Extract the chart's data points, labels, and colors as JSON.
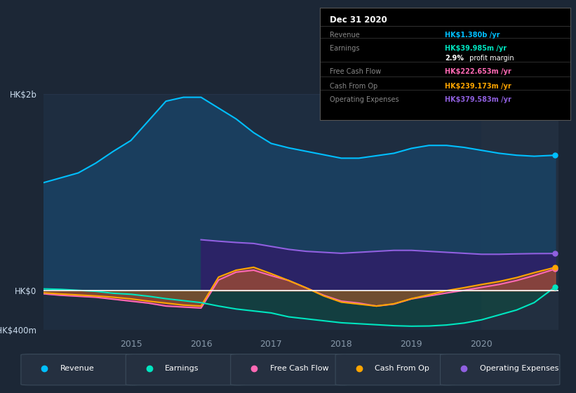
{
  "bg_color": "#1c2736",
  "plot_bg_color": "#1e2d40",
  "grid_color": "#2a3a50",
  "zero_line_color": "#ffffff",
  "series": {
    "revenue": {
      "color": "#00bfff",
      "label": "Revenue"
    },
    "earnings": {
      "color": "#00e5c0",
      "label": "Earnings"
    },
    "free_cash_flow": {
      "color": "#ff69b4",
      "label": "Free Cash Flow"
    },
    "cash_from_op": {
      "color": "#ffa500",
      "label": "Cash From Op"
    },
    "operating_expenses": {
      "color": "#9060e0",
      "label": "Operating Expenses"
    }
  },
  "x": [
    2013.75,
    2014.0,
    2014.25,
    2014.5,
    2014.75,
    2015.0,
    2015.25,
    2015.5,
    2015.75,
    2016.0,
    2016.25,
    2016.5,
    2016.75,
    2017.0,
    2017.25,
    2017.5,
    2017.75,
    2018.0,
    2018.25,
    2018.5,
    2018.75,
    2019.0,
    2019.25,
    2019.5,
    2019.75,
    2020.0,
    2020.25,
    2020.5,
    2020.75,
    2021.05
  ],
  "revenue": [
    1100,
    1150,
    1200,
    1300,
    1420,
    1530,
    1730,
    1930,
    1970,
    1970,
    1860,
    1750,
    1610,
    1500,
    1455,
    1420,
    1385,
    1350,
    1350,
    1375,
    1400,
    1450,
    1480,
    1480,
    1460,
    1430,
    1400,
    1380,
    1370,
    1380
  ],
  "earnings": [
    20,
    15,
    5,
    -5,
    -25,
    -35,
    -55,
    -80,
    -100,
    -120,
    -155,
    -185,
    -205,
    -225,
    -265,
    -285,
    -305,
    -325,
    -335,
    -345,
    -355,
    -360,
    -358,
    -348,
    -328,
    -295,
    -245,
    -195,
    -120,
    40
  ],
  "free_cash_flow": [
    -30,
    -45,
    -55,
    -65,
    -85,
    -105,
    -125,
    -155,
    -165,
    -175,
    110,
    190,
    210,
    155,
    105,
    30,
    -45,
    -105,
    -125,
    -155,
    -135,
    -82,
    -52,
    -22,
    5,
    35,
    65,
    105,
    155,
    222
  ],
  "cash_from_op": [
    -20,
    -32,
    -42,
    -52,
    -65,
    -82,
    -105,
    -125,
    -145,
    -155,
    140,
    210,
    240,
    175,
    105,
    30,
    -52,
    -115,
    -135,
    -155,
    -132,
    -80,
    -40,
    2,
    32,
    65,
    95,
    135,
    185,
    239
  ],
  "operating_expenses": [
    0,
    0,
    0,
    0,
    0,
    0,
    0,
    0,
    0,
    520,
    505,
    492,
    482,
    452,
    422,
    402,
    392,
    382,
    392,
    402,
    412,
    412,
    402,
    392,
    382,
    372,
    372,
    376,
    379,
    380
  ],
  "ylim": [
    -400,
    2000
  ],
  "yticks": [
    -400,
    0,
    2000
  ],
  "ytick_labels": [
    "-HK$400m",
    "HK$0",
    "HK$2b"
  ],
  "xticks": [
    2015,
    2016,
    2017,
    2018,
    2019,
    2020
  ],
  "xlabel_color": "#8899aa",
  "ylabel_color": "#ccddee",
  "info_box": {
    "title": "Dec 31 2020",
    "rows": [
      {
        "label": "Revenue",
        "value": "HK$1.380b /yr",
        "value_color": "#00bfff"
      },
      {
        "label": "Earnings",
        "value": "HK$39.985m /yr",
        "value_color": "#00e5c0"
      },
      {
        "label": "",
        "value": "2.9% profit margin",
        "value_color": "#ffffff",
        "bold_prefix": "2.9%"
      },
      {
        "label": "Free Cash Flow",
        "value": "HK$222.653m /yr",
        "value_color": "#ff69b4"
      },
      {
        "label": "Cash From Op",
        "value": "HK$239.173m /yr",
        "value_color": "#ffa500"
      },
      {
        "label": "Operating Expenses",
        "value": "HK$379.583m /yr",
        "value_color": "#9060e0"
      }
    ]
  },
  "legend_items": [
    {
      "label": "Revenue",
      "color": "#00bfff"
    },
    {
      "label": "Earnings",
      "color": "#00e5c0"
    },
    {
      "label": "Free Cash Flow",
      "color": "#ff69b4"
    },
    {
      "label": "Cash From Op",
      "color": "#ffa500"
    },
    {
      "label": "Operating Expenses",
      "color": "#9060e0"
    }
  ]
}
